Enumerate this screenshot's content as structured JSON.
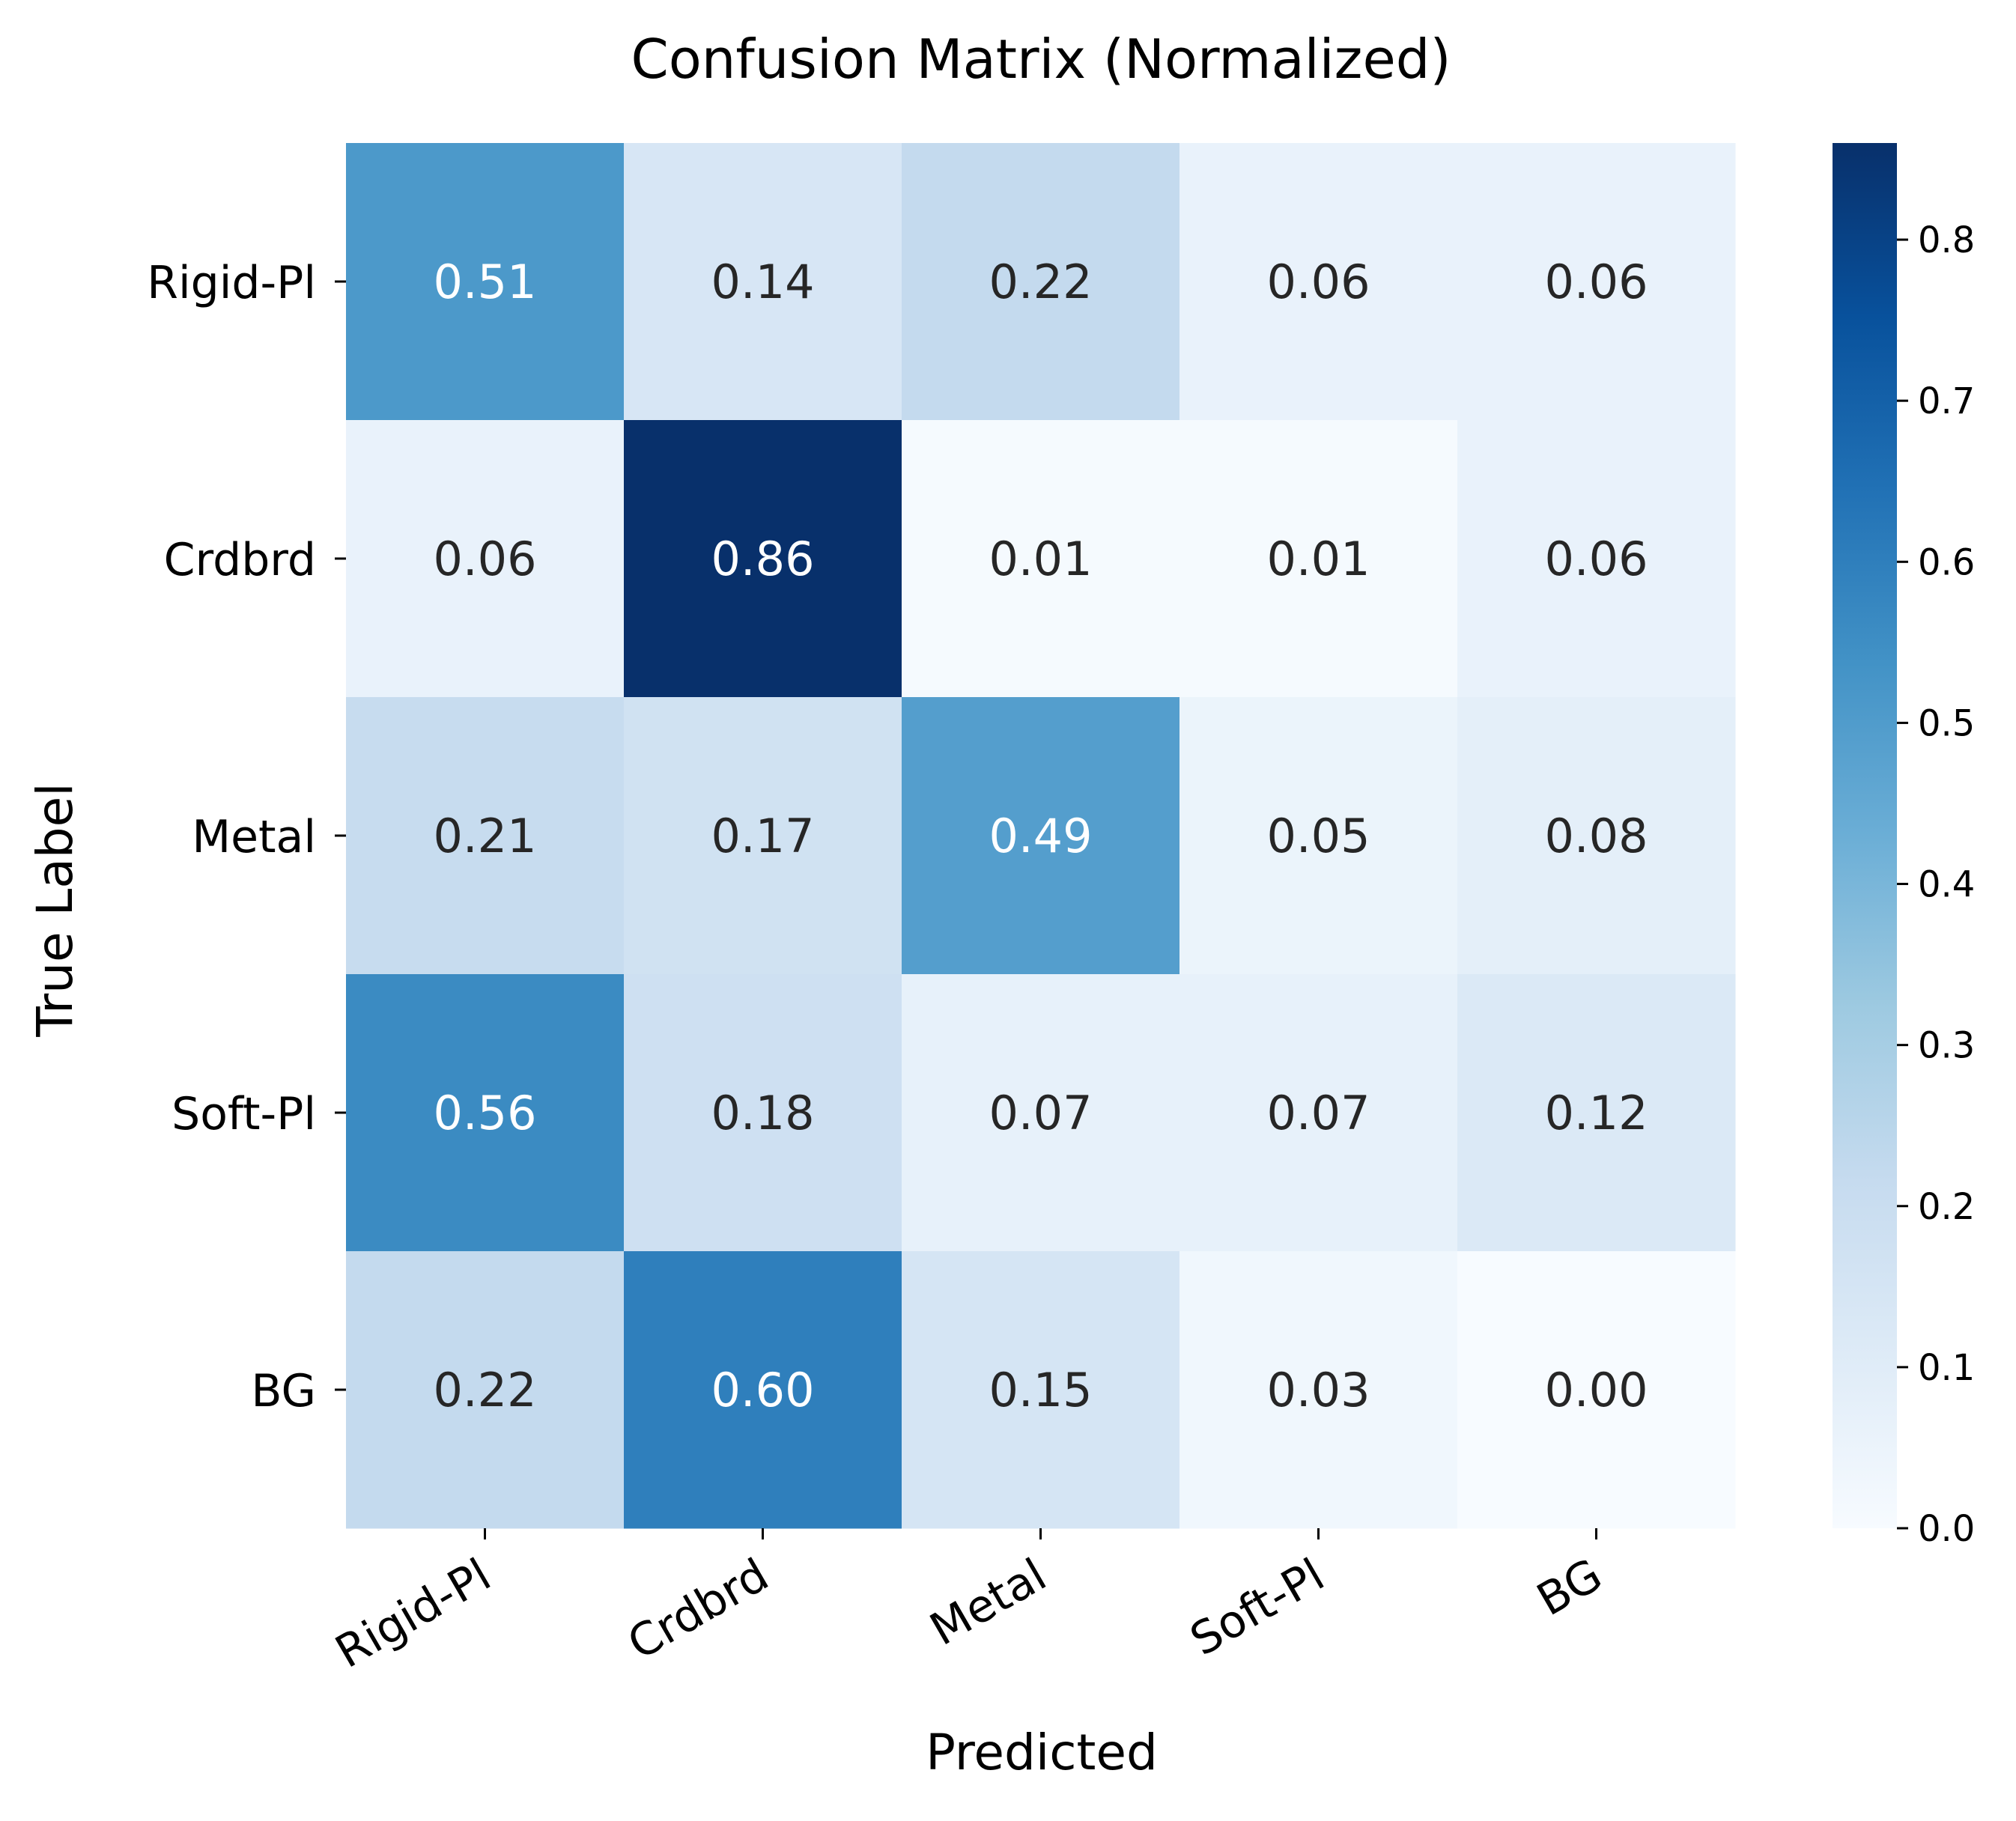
{
  "chart_data": {
    "type": "heatmap",
    "title": "Confusion Matrix (Normalized)",
    "xlabel": "Predicted",
    "ylabel": "True Label",
    "x_categories": [
      "Rigid-Pl",
      "Crdbrd",
      "Metal",
      "Soft-Pl",
      "BG"
    ],
    "y_categories": [
      "Rigid-Pl",
      "Crdbrd",
      "Metal",
      "Soft-Pl",
      "BG"
    ],
    "values": [
      [
        0.51,
        0.14,
        0.22,
        0.06,
        0.06
      ],
      [
        0.06,
        0.86,
        0.01,
        0.01,
        0.06
      ],
      [
        0.21,
        0.17,
        0.49,
        0.05,
        0.08
      ],
      [
        0.56,
        0.18,
        0.07,
        0.07,
        0.12
      ],
      [
        0.22,
        0.6,
        0.15,
        0.03,
        0.0
      ]
    ],
    "value_format": "0.00",
    "colormap": "Blues",
    "colorbar": {
      "range": [
        0.0,
        0.86
      ],
      "ticks": [
        "0.0",
        "0.1",
        "0.2",
        "0.3",
        "0.4",
        "0.5",
        "0.6",
        "0.7",
        "0.8"
      ],
      "position": "right"
    },
    "colors": {
      "low": "#f7fbff",
      "high": "#08306b",
      "text_dark": "#262626",
      "text_light": "#ffffff"
    },
    "grid": false
  }
}
